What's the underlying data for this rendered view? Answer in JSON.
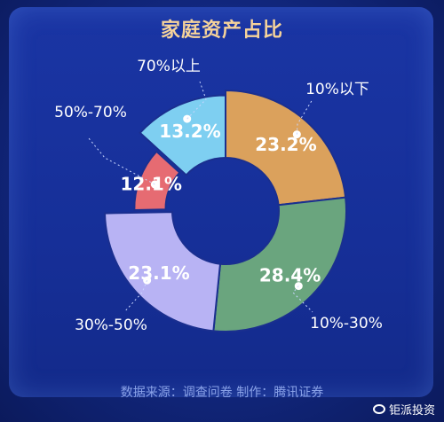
{
  "chart_data": {
    "type": "pie",
    "donut": true,
    "title": "家庭资产占比",
    "categories": [
      "10%以下",
      "10%-30%",
      "30%-50%",
      "50%-70%",
      "70%以上"
    ],
    "values": [
      23.2,
      28.4,
      23.1,
      12.1,
      13.2
    ],
    "value_labels": [
      "23.2%",
      "28.4%",
      "23.1%",
      "12.1%",
      "13.2%"
    ],
    "colors": [
      "#dba15c",
      "#6aa57e",
      "#b8b3f4",
      "#e66b72",
      "#7ecff1"
    ],
    "exploded": [
      "50%-70%"
    ]
  },
  "footer": {
    "source": "数据来源：调查问卷  制作：腾讯证券",
    "watermark": "钜派投资"
  }
}
